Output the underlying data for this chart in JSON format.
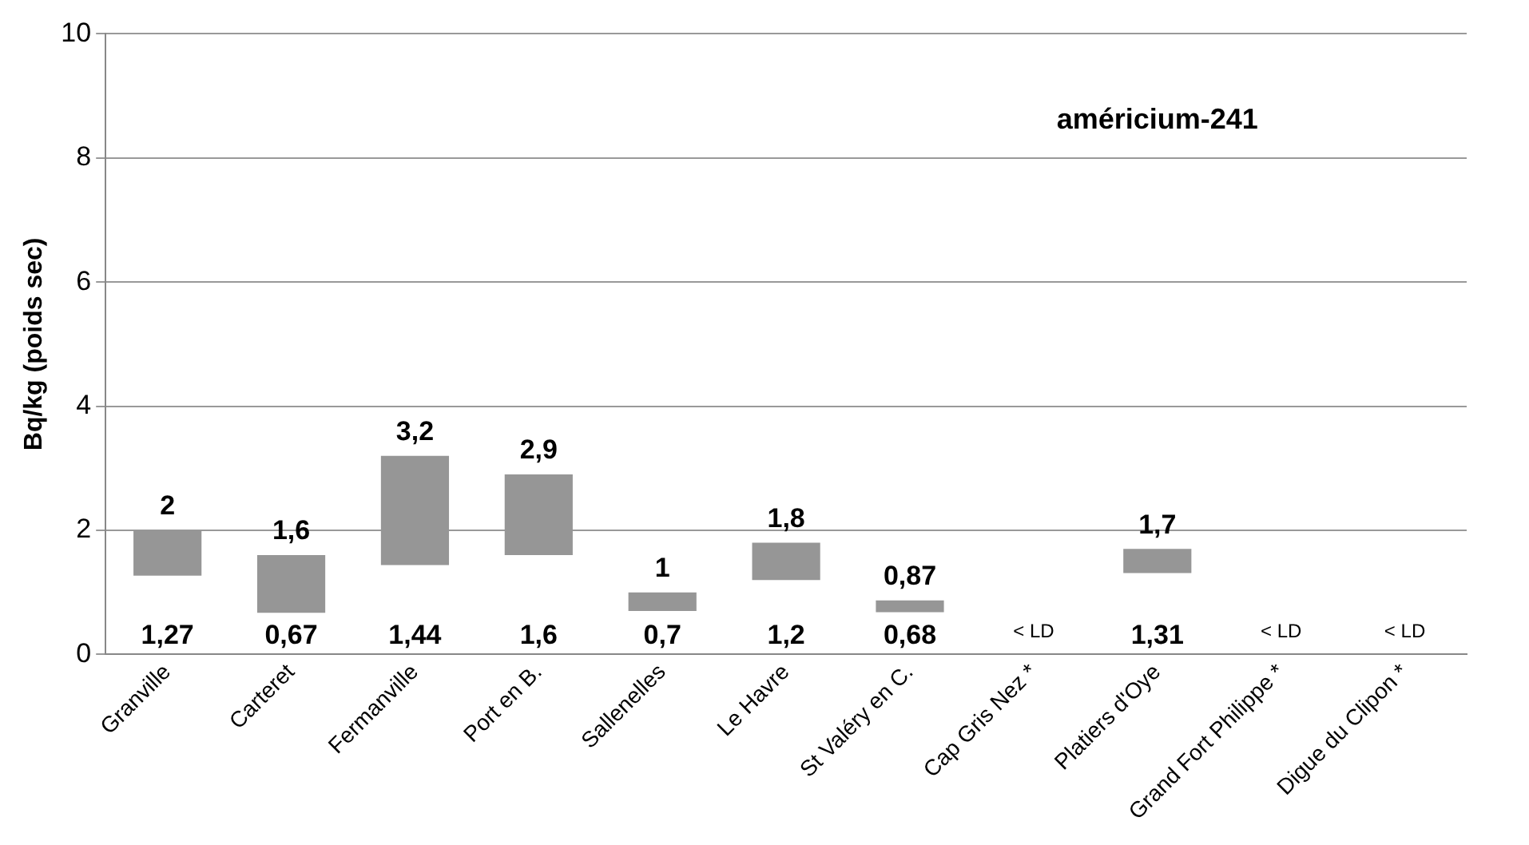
{
  "chart_data": {
    "type": "bar",
    "title": "américium-241",
    "ylabel": "Bq/kg (poids sec)",
    "categories": [
      "Granville",
      "Carteret",
      "Fermanville",
      "Port en B.",
      "Sallenelles",
      "Le Havre",
      "St Valéry en C.",
      "Cap Gris Nez *",
      "Platiers d'Oye",
      "Grand Fort Philippe *",
      "Digue du Clipon *"
    ],
    "base": [
      1.27,
      0.67,
      1.44,
      1.6,
      0.7,
      1.2,
      0.68,
      null,
      1.31,
      null,
      null
    ],
    "values": [
      0.73,
      0.93,
      1.76,
      1.3,
      0.3,
      0.6,
      0.19,
      null,
      0.39,
      null,
      null
    ],
    "color": "#969696",
    "ylim": [
      0,
      10
    ],
    "yticks": [
      0,
      2,
      4,
      6,
      8,
      10
    ],
    "grid": "y",
    "legend": false,
    "annotations": [
      {
        "text": "2",
        "x": "Granville",
        "y": 2
      },
      {
        "text": "1,27",
        "x": "Granville",
        "y": 1.27
      },
      {
        "text": "1,6",
        "x": "Carteret",
        "y": 1.6
      },
      {
        "text": "0,67",
        "x": "Carteret",
        "y": 0.67
      },
      {
        "text": "3,2",
        "x": "Fermanville",
        "y": 3.2
      },
      {
        "text": "1,44",
        "x": "Fermanville",
        "y": 1.44
      },
      {
        "text": "2,9",
        "x": "Port en B.",
        "y": 2.9
      },
      {
        "text": "1,6",
        "x": "Port en B.",
        "y": 1.6
      },
      {
        "text": "1",
        "x": "Sallenelles",
        "y": 1
      },
      {
        "text": "0,7",
        "x": "Sallenelles",
        "y": 0.7
      },
      {
        "text": "1,8",
        "x": "Le Havre",
        "y": 1.8
      },
      {
        "text": "1,2",
        "x": "Le Havre",
        "y": 1.2
      },
      {
        "text": "0,87",
        "x": "St Valéry en C.",
        "y": 0.87
      },
      {
        "text": "0,68",
        "x": "St Valéry en C.",
        "y": 0.68
      },
      "< LD",
      {
        "text": "1,7",
        "x": "Platiers d'Oye",
        "y": 1.7
      },
      {
        "text": "1,31",
        "x": "Platiers d'Oye",
        "y": 1.31
      },
      "< LD",
      "< LD"
    ]
  }
}
